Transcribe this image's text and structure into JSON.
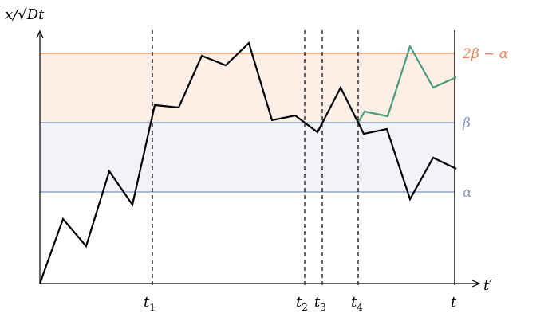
{
  "diagram": {
    "y_axis_label": "x/√Dt",
    "x_axis_label": "t′",
    "levels": [
      {
        "label": "2β − α",
        "color": "#e8825a"
      },
      {
        "label": "β",
        "color": "#8096bc"
      },
      {
        "label": "α",
        "color": "#8096bc"
      }
    ],
    "band_colors": {
      "upper": "#fdeee6",
      "lower": "#f1f3f8"
    },
    "time_markers": [
      {
        "base": "t",
        "sub": "1"
      },
      {
        "base": "t",
        "sub": "2"
      },
      {
        "base": "t",
        "sub": "3"
      },
      {
        "base": "t",
        "sub": "4"
      },
      {
        "base": "t",
        "sub": ""
      }
    ],
    "paths": {
      "main_color": "#000000",
      "reflected_color": "#4a9a76"
    }
  }
}
